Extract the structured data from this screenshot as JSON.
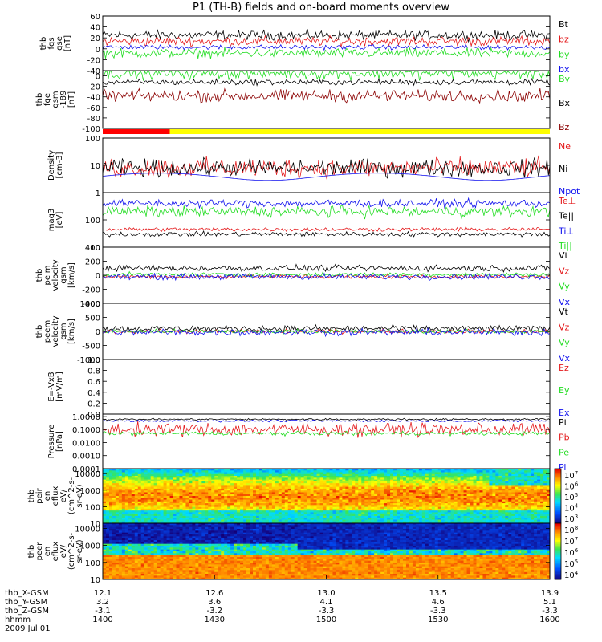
{
  "title": "P1 (TH-B) fields and on-board moments overview",
  "colors": {
    "black": "#000000",
    "red": "#e41a1c",
    "green": "#22dd22",
    "blue": "#1010ee",
    "darkred": "#8b0000",
    "yellow": "#ffff00"
  },
  "bars": [
    {
      "label": "red",
      "from": 0.0,
      "to": 0.15,
      "color": "#ff0000"
    },
    {
      "label": "yellow",
      "from": 0.15,
      "to": 1.0,
      "color": "#ffff00"
    }
  ],
  "chart_data": [
    {
      "type": "line",
      "ylabel": [
        "thb",
        "fgs",
        "gse",
        "[nT]"
      ],
      "ylim": [
        -40,
        60
      ],
      "yticks": [
        60,
        40,
        20,
        0,
        -20,
        -40
      ],
      "series": [
        {
          "name": "Bt",
          "color": "#000000",
          "base": 25,
          "noise": 6
        },
        {
          "name": "bz",
          "color": "#e41a1c",
          "base": 14,
          "noise": 6
        },
        {
          "name": "by",
          "color": "#22dd22",
          "base": -8,
          "noise": 6
        },
        {
          "name": "bx",
          "color": "#1010ee",
          "base": 3,
          "noise": 3
        }
      ]
    },
    {
      "type": "line",
      "ylabel": [
        "thb",
        "fge",
        "gsm",
        "-189",
        "[nT]"
      ],
      "ylim": [
        -100,
        10
      ],
      "yticks": [
        0,
        -20,
        -40,
        -60,
        -80,
        -100
      ],
      "series": [
        {
          "name": "By",
          "color": "#22dd22",
          "base": 5,
          "noise": 8
        },
        {
          "name": "Bx",
          "color": "#000000",
          "base": -12,
          "noise": 4
        },
        {
          "name": "Bz",
          "color": "#8b0000",
          "base": -38,
          "noise": 8
        }
      ]
    },
    {
      "type": "line",
      "log": true,
      "ylabel": [
        "Density",
        "[cm-3]"
      ],
      "ylim": [
        1,
        100
      ],
      "yticks": [
        100,
        10,
        1
      ],
      "series": [
        {
          "name": "Ne",
          "color": "#e41a1c",
          "base": 8,
          "noise": 0.25
        },
        {
          "name": "Ni",
          "color": "#000000",
          "base": 8,
          "noise": 0.22
        },
        {
          "name": "Npot",
          "color": "#1010ee",
          "base": 4,
          "noise": 0.02
        }
      ]
    },
    {
      "type": "line",
      "log": true,
      "ylabel": [
        "mag3",
        "[eV]"
      ],
      "ylim": [
        10,
        1000
      ],
      "yticks": [
        100,
        10
      ],
      "series": [
        {
          "name": "Te⊥",
          "color": "#e41a1c",
          "base": 45,
          "noise": 0.05
        },
        {
          "name": "Te||",
          "color": "#000000",
          "base": 30,
          "noise": 0.06
        },
        {
          "name": "Ti⊥",
          "color": "#1010ee",
          "base": 400,
          "noise": 0.1
        },
        {
          "name": "Ti||",
          "color": "#22dd22",
          "base": 200,
          "noise": 0.14
        }
      ]
    },
    {
      "type": "line",
      "ylabel": [
        "thb",
        "peim",
        "velocity",
        "gsm",
        "[km/s]"
      ],
      "ylim": [
        -400,
        400
      ],
      "yticks": [
        400,
        200,
        0,
        -200,
        -400
      ],
      "series": [
        {
          "name": "Vt",
          "color": "#000000",
          "base": 100,
          "noise": 30
        },
        {
          "name": "Vz",
          "color": "#e41a1c",
          "base": -20,
          "noise": 20
        },
        {
          "name": "Vy",
          "color": "#22dd22",
          "base": 10,
          "noise": 20
        },
        {
          "name": "Vx",
          "color": "#1010ee",
          "base": -20,
          "noise": 30
        }
      ]
    },
    {
      "type": "line",
      "ylabel": [
        "thb",
        "peem",
        "velocity",
        "gsm",
        "[km/s]"
      ],
      "ylim": [
        -1000,
        1000
      ],
      "yticks": [
        1000,
        500,
        0,
        -500,
        -1000
      ],
      "series": [
        {
          "name": "Vt",
          "color": "#000000",
          "base": 100,
          "noise": 80
        },
        {
          "name": "Vz",
          "color": "#e41a1c",
          "base": 0,
          "noise": 50
        },
        {
          "name": "Vy",
          "color": "#22dd22",
          "base": 0,
          "noise": 50
        },
        {
          "name": "Vx",
          "color": "#1010ee",
          "base": -30,
          "noise": 80
        }
      ]
    },
    {
      "type": "line",
      "ylabel": [
        "E=-VxB",
        "[mV/m]"
      ],
      "ylim": [
        0,
        1
      ],
      "yticks": [
        1.0,
        0.8,
        0.6,
        0.4,
        0.2,
        0.0
      ],
      "series": [
        {
          "name": "Ez",
          "color": "#e41a1c",
          "empty": true
        },
        {
          "name": "Ey",
          "color": "#22dd22",
          "empty": true
        },
        {
          "name": "Ex",
          "color": "#1010ee",
          "empty": true
        }
      ]
    },
    {
      "type": "line",
      "log": true,
      "ylabel": [
        "Pressure",
        "[nPa]"
      ],
      "ylim": [
        0.0001,
        1.5
      ],
      "yticks": [
        1.0,
        0.1,
        0.01,
        0.001,
        0.0001
      ],
      "ytickLabels": [
        "1.0000",
        "0.1000",
        "0.0100",
        "0.0010",
        "0.0001"
      ],
      "series": [
        {
          "name": "Pt",
          "color": "#000000",
          "base": 0.6,
          "noise": 0.05
        },
        {
          "name": "Pb",
          "color": "#e41a1c",
          "base": 0.1,
          "noise": 0.35
        },
        {
          "name": "Pe",
          "color": "#22dd22",
          "base": 0.05,
          "noise": 0.1
        },
        {
          "name": "Pi",
          "color": "#1010ee",
          "base": 0.45,
          "noise": 0.05
        }
      ]
    },
    {
      "type": "heatmap",
      "log": true,
      "ylabel": [
        "thb",
        "peir",
        "en",
        "eflux",
        "eV/",
        "(cm^2-s-",
        "sr-eV)"
      ],
      "ylim": [
        10,
        20000
      ],
      "yticks": [
        10000,
        1000,
        100,
        10
      ],
      "colorbar": {
        "ticks": [
          "10^7",
          "10^6",
          "10^5",
          "10^4",
          "10^3"
        ]
      }
    },
    {
      "type": "heatmap",
      "log": true,
      "ylabel": [
        "thb",
        "peer",
        "en",
        "eflux",
        "eV/",
        "(cm^2-s-",
        "sr-eV)"
      ],
      "ylim": [
        10,
        20000
      ],
      "yticks": [
        10000,
        1000,
        100,
        10
      ],
      "colorbar": {
        "ticks": [
          "10^8",
          "10^7",
          "10^6",
          "10^5",
          "10^4"
        ]
      }
    }
  ],
  "xaxis": {
    "rows": [
      "thb_X-GSM",
      "thb_Y-GSM",
      "thb_Z-GSM",
      "hhmm",
      "2009 Jul 01"
    ],
    "ticks": [
      {
        "pos": 0.0,
        "vals": [
          "12.1",
          "3.2",
          "-3.1",
          "1400"
        ]
      },
      {
        "pos": 0.25,
        "vals": [
          "12.6",
          "3.6",
          "-3.2",
          "1430"
        ]
      },
      {
        "pos": 0.5,
        "vals": [
          "13.0",
          "4.1",
          "-3.3",
          "1500"
        ]
      },
      {
        "pos": 0.75,
        "vals": [
          "13.5",
          "4.6",
          "-3.3",
          "1530"
        ]
      },
      {
        "pos": 1.0,
        "vals": [
          "13.9",
          "5.1",
          "-3.3",
          "1600"
        ]
      }
    ]
  }
}
